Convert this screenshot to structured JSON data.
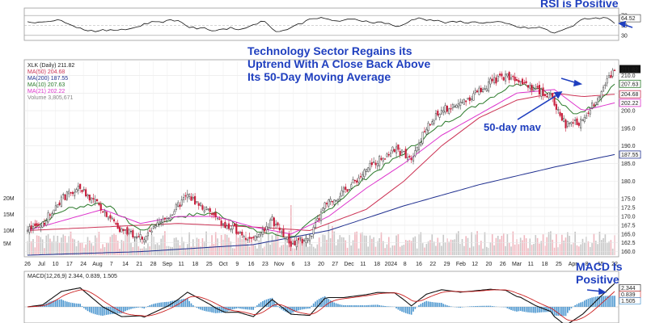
{
  "annotations": {
    "rsi_title": "RSI is Positive",
    "headline": [
      "Technology Sector Regains its",
      "Uptrend With A Close Back Above",
      "Its 50-Day Moving Average"
    ],
    "mav50": "50-day mav",
    "macd_title": [
      "MACD Is",
      "Positive"
    ]
  },
  "legend": {
    "symbol": "XLK (Daily) 211.82",
    "ma50": "MA(50) 204.68",
    "ma200": "MA(200) 187.55",
    "ma10": "MA(10) 207.63",
    "ma21": "MA(21) 202.22",
    "volume": "Volume 3,805,671",
    "macd": "MACD(12,26,9) 2.344, 0.839, 1.505"
  },
  "colors": {
    "ma50": "#cc3355",
    "ma200": "#1f2f8f",
    "ma10": "#2a7a2a",
    "ma21": "#dd33cc",
    "up": "#444444",
    "down": "#c81e3c",
    "annotation": "#1f3fbf",
    "hist": "#2f86c8"
  },
  "chart_data": [
    {
      "type": "line",
      "panel": "rsi",
      "title": "RSI is Positive",
      "y_ticks": [
        "70",
        "50",
        "30"
      ],
      "last_value_label": "64.52",
      "ylim": [
        20,
        85
      ]
    },
    {
      "type": "line",
      "panel": "price",
      "title": "Technology Sector Regains its Uptrend With A Close Back Above Its 50-Day Moving Average",
      "ylim": [
        159,
        214
      ],
      "y_ticks": [
        "210.0",
        "205.0",
        "200.0",
        "195.0",
        "190.0",
        "185.0",
        "180.0",
        "175.0",
        "172.5",
        "170.0",
        "167.5",
        "165.0",
        "162.5",
        "160.0"
      ],
      "x_ticks": [
        "26",
        "Jul",
        "10",
        "17",
        "24",
        "Aug",
        "7",
        "14",
        "21",
        "28",
        "Sep",
        "11",
        "18",
        "25",
        "Oct",
        "9",
        "16",
        "23",
        "Nov",
        "6",
        "13",
        "20",
        "27",
        "Dec",
        "11",
        "18",
        "2024",
        "8",
        "16",
        "22",
        "29",
        "Feb",
        "12",
        "20",
        "26",
        "Mar",
        "11",
        "18",
        "25",
        "Apr",
        "8",
        "15",
        "22"
      ],
      "volume_ticks": [
        "20M",
        "15M",
        "10M",
        "5M"
      ],
      "series": [
        {
          "name": "XLK (Daily)",
          "last": "211.82",
          "x": [
            0,
            8,
            18,
            28,
            40,
            50,
            62,
            75,
            85,
            97,
            105,
            112,
            120,
            130,
            140,
            150,
            158,
            168,
            178,
            186,
            195,
            204,
            212,
            220,
            230,
            238,
            246,
            254,
            262,
            270,
            278,
            286,
            295,
            304,
            312
          ],
          "values": [
            166,
            168,
            175,
            178,
            172,
            166,
            164,
            170,
            176,
            171,
            167,
            166,
            163,
            169,
            162,
            164,
            173,
            177,
            182,
            186,
            189,
            187,
            195,
            200,
            202,
            205,
            208,
            210,
            209,
            206,
            204,
            196,
            197,
            205,
            211.82
          ]
        },
        {
          "name": "MA(50)",
          "last": "204.68",
          "x": [
            0,
            40,
            80,
            120,
            150,
            180,
            200,
            220,
            240,
            260,
            280,
            295,
            312
          ],
          "values": [
            166,
            167,
            168,
            167,
            166,
            172,
            180,
            190,
            198,
            203,
            205,
            204,
            204.68
          ]
        },
        {
          "name": "MA(200)",
          "last": "187.55",
          "x": [
            0,
            60,
            120,
            160,
            200,
            240,
            280,
            312
          ],
          "values": [
            159,
            160,
            162,
            166,
            173,
            179,
            184,
            187.55
          ]
        },
        {
          "name": "MA(10)",
          "last": "207.63",
          "x": [
            0,
            20,
            40,
            60,
            80,
            100,
            120,
            140,
            160,
            180,
            200,
            220,
            240,
            260,
            275,
            290,
            300,
            312
          ],
          "values": [
            166,
            172,
            174,
            166,
            170,
            171,
            166,
            164,
            172,
            181,
            188,
            196,
            202,
            208,
            206,
            199,
            201,
            207.63
          ]
        },
        {
          "name": "MA(21)",
          "last": "202.22",
          "x": [
            0,
            20,
            40,
            60,
            80,
            100,
            120,
            140,
            160,
            180,
            200,
            220,
            240,
            260,
            280,
            295,
            312
          ],
          "values": [
            166,
            169,
            172,
            168,
            170,
            170,
            167,
            165,
            170,
            178,
            185,
            193,
            199,
            205,
            206,
            200,
            202.22
          ]
        }
      ]
    },
    {
      "type": "line",
      "panel": "macd",
      "title": "MACD Is Positive",
      "series": [
        {
          "name": "MACD",
          "last": "2.344"
        },
        {
          "name": "Signal",
          "last": "0.839"
        },
        {
          "name": "Histogram",
          "last": "1.505"
        }
      ]
    }
  ]
}
